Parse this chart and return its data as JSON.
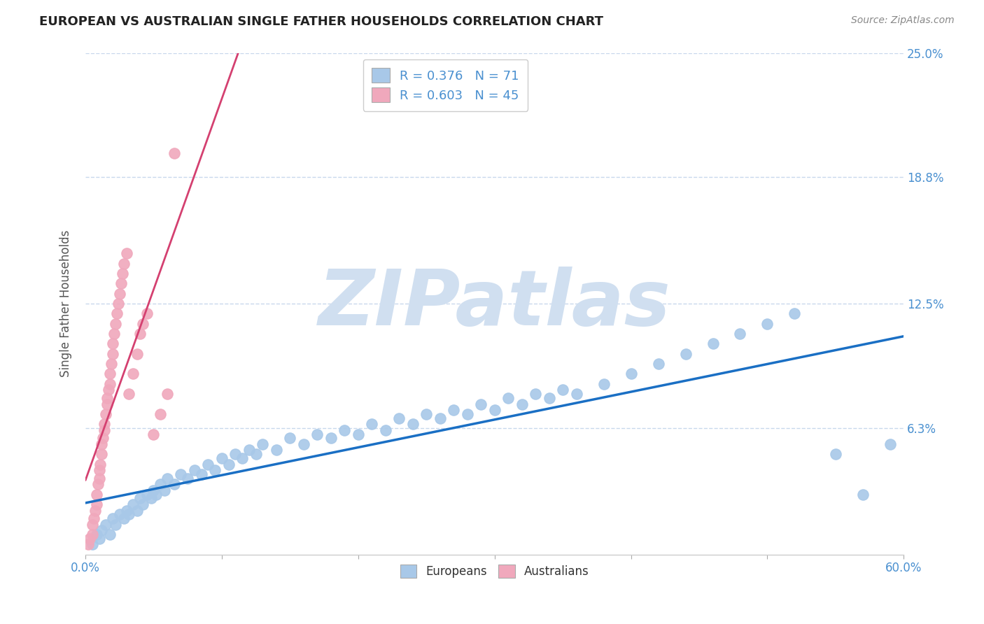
{
  "title": "EUROPEAN VS AUSTRALIAN SINGLE FATHER HOUSEHOLDS CORRELATION CHART",
  "source_text": "Source: ZipAtlas.com",
  "ylabel": "Single Father Households",
  "xlim": [
    0.0,
    0.6
  ],
  "ylim": [
    0.0,
    0.25
  ],
  "yticks": [
    0.0,
    0.063,
    0.125,
    0.188,
    0.25
  ],
  "ytick_labels": [
    "",
    "6.3%",
    "12.5%",
    "18.8%",
    "25.0%"
  ],
  "xtick_left_label": "0.0%",
  "xtick_right_label": "60.0%",
  "european_color": "#a8c8e8",
  "australian_color": "#f0a8bc",
  "regression_european_color": "#1a6fc4",
  "regression_australian_color": "#d44070",
  "label_color": "#4a90d0",
  "R_european": 0.376,
  "N_european": 71,
  "R_australian": 0.603,
  "N_australian": 45,
  "background_color": "#ffffff",
  "grid_color": "#c8d8ec",
  "watermark": "ZIPatlas",
  "watermark_color": "#d0dff0",
  "eu_x": [
    0.005,
    0.008,
    0.01,
    0.012,
    0.015,
    0.018,
    0.02,
    0.022,
    0.025,
    0.028,
    0.03,
    0.032,
    0.035,
    0.038,
    0.04,
    0.042,
    0.045,
    0.048,
    0.05,
    0.052,
    0.055,
    0.058,
    0.06,
    0.065,
    0.07,
    0.075,
    0.08,
    0.085,
    0.09,
    0.095,
    0.1,
    0.105,
    0.11,
    0.115,
    0.12,
    0.125,
    0.13,
    0.14,
    0.15,
    0.16,
    0.17,
    0.18,
    0.19,
    0.2,
    0.21,
    0.22,
    0.23,
    0.24,
    0.25,
    0.26,
    0.27,
    0.28,
    0.29,
    0.3,
    0.31,
    0.32,
    0.33,
    0.34,
    0.35,
    0.36,
    0.38,
    0.4,
    0.42,
    0.44,
    0.46,
    0.48,
    0.5,
    0.52,
    0.55,
    0.57,
    0.59
  ],
  "eu_y": [
    0.005,
    0.01,
    0.008,
    0.012,
    0.015,
    0.01,
    0.018,
    0.015,
    0.02,
    0.018,
    0.022,
    0.02,
    0.025,
    0.022,
    0.028,
    0.025,
    0.03,
    0.028,
    0.032,
    0.03,
    0.035,
    0.032,
    0.038,
    0.035,
    0.04,
    0.038,
    0.042,
    0.04,
    0.045,
    0.042,
    0.048,
    0.045,
    0.05,
    0.048,
    0.052,
    0.05,
    0.055,
    0.052,
    0.058,
    0.055,
    0.06,
    0.058,
    0.062,
    0.06,
    0.065,
    0.062,
    0.068,
    0.065,
    0.07,
    0.068,
    0.072,
    0.07,
    0.075,
    0.072,
    0.078,
    0.075,
    0.08,
    0.078,
    0.082,
    0.08,
    0.085,
    0.09,
    0.095,
    0.1,
    0.105,
    0.11,
    0.115,
    0.12,
    0.05,
    0.03,
    0.055
  ],
  "au_x": [
    0.002,
    0.003,
    0.005,
    0.005,
    0.006,
    0.007,
    0.008,
    0.008,
    0.009,
    0.01,
    0.01,
    0.011,
    0.012,
    0.012,
    0.013,
    0.014,
    0.014,
    0.015,
    0.016,
    0.016,
    0.017,
    0.018,
    0.018,
    0.019,
    0.02,
    0.02,
    0.021,
    0.022,
    0.023,
    0.024,
    0.025,
    0.026,
    0.027,
    0.028,
    0.03,
    0.032,
    0.035,
    0.038,
    0.04,
    0.042,
    0.045,
    0.05,
    0.055,
    0.06,
    0.065
  ],
  "au_y": [
    0.005,
    0.008,
    0.01,
    0.015,
    0.018,
    0.022,
    0.025,
    0.03,
    0.035,
    0.038,
    0.042,
    0.045,
    0.05,
    0.055,
    0.058,
    0.062,
    0.065,
    0.07,
    0.075,
    0.078,
    0.082,
    0.085,
    0.09,
    0.095,
    0.1,
    0.105,
    0.11,
    0.115,
    0.12,
    0.125,
    0.13,
    0.135,
    0.14,
    0.145,
    0.15,
    0.08,
    0.09,
    0.1,
    0.11,
    0.115,
    0.12,
    0.06,
    0.07,
    0.08,
    0.2
  ]
}
